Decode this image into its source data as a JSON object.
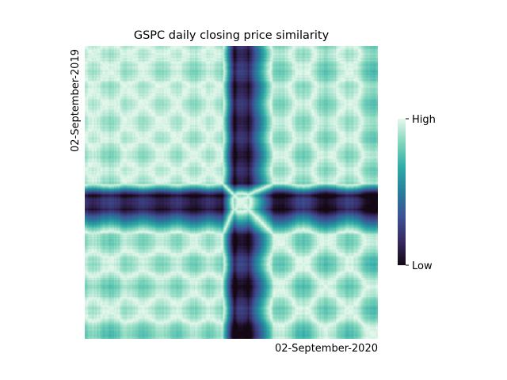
{
  "chart_data": {
    "type": "heatmap",
    "title": "GSPC daily closing price similarity",
    "ylabel": "02-September-2019",
    "xlabel": "02-September-2020",
    "colorbar": {
      "ticks": [
        "High",
        "Low"
      ],
      "colors": [
        "#e6f8ec",
        "#7fd5bb",
        "#2eaaa8",
        "#287d9b",
        "#3c5295",
        "#372a63",
        "#140814"
      ]
    },
    "grid": false,
    "legend": "right"
  }
}
